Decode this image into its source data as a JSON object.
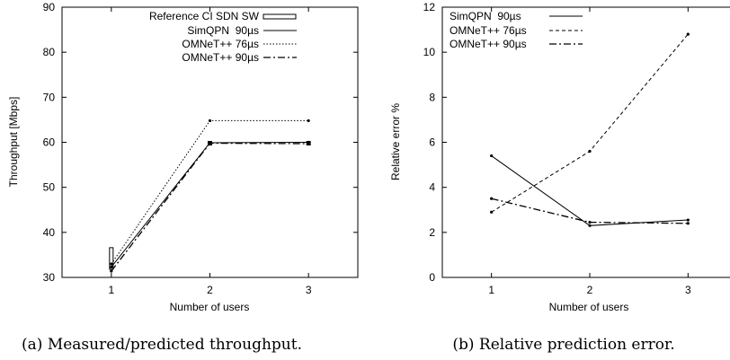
{
  "chart_data": [
    {
      "type": "line",
      "caption": "(a) Measured/predicted throughput.",
      "xlabel": "Number of users",
      "ylabel": "Throughput [Mbps]",
      "xlim": [
        0.5,
        3.5
      ],
      "ylim": [
        30,
        90
      ],
      "xticks": [
        "1",
        "2",
        "3"
      ],
      "yticks": [
        "30",
        "40",
        "50",
        "60",
        "70",
        "80",
        "90"
      ],
      "legend_position": "top-right",
      "x": [
        1,
        2,
        3
      ],
      "reference": {
        "name": "Reference CI SDN SW",
        "ci": [
          [
            31.8,
            36.6
          ],
          [
            59.4,
            60.2
          ],
          [
            59.4,
            60.2
          ]
        ]
      },
      "series": [
        {
          "name": "SimQPN  90µs",
          "values": [
            32.3,
            59.9,
            60.0
          ]
        },
        {
          "name": "OMNeT++ 76µs",
          "values": [
            33.0,
            64.8,
            64.8
          ]
        },
        {
          "name": "OMNeT++ 90µs",
          "values": [
            31.4,
            59.8,
            59.7
          ]
        }
      ]
    },
    {
      "type": "line",
      "caption": "(b) Relative prediction error.",
      "xlabel": "Number of users",
      "ylabel": "Relative error %",
      "xlim": [
        0.5,
        3.5
      ],
      "ylim": [
        0,
        12
      ],
      "xticks": [
        "1",
        "2",
        "3"
      ],
      "yticks": [
        "0",
        "2",
        "4",
        "6",
        "8",
        "10",
        "12"
      ],
      "legend_position": "top-left",
      "x": [
        1,
        2,
        3
      ],
      "series": [
        {
          "name": "SimQPN  90µs",
          "values": [
            5.4,
            2.3,
            2.55
          ]
        },
        {
          "name": "OMNeT++ 76µs",
          "values": [
            2.9,
            5.6,
            10.8
          ]
        },
        {
          "name": "OMNeT++ 90µs",
          "values": [
            3.5,
            2.45,
            2.4
          ]
        }
      ]
    }
  ]
}
